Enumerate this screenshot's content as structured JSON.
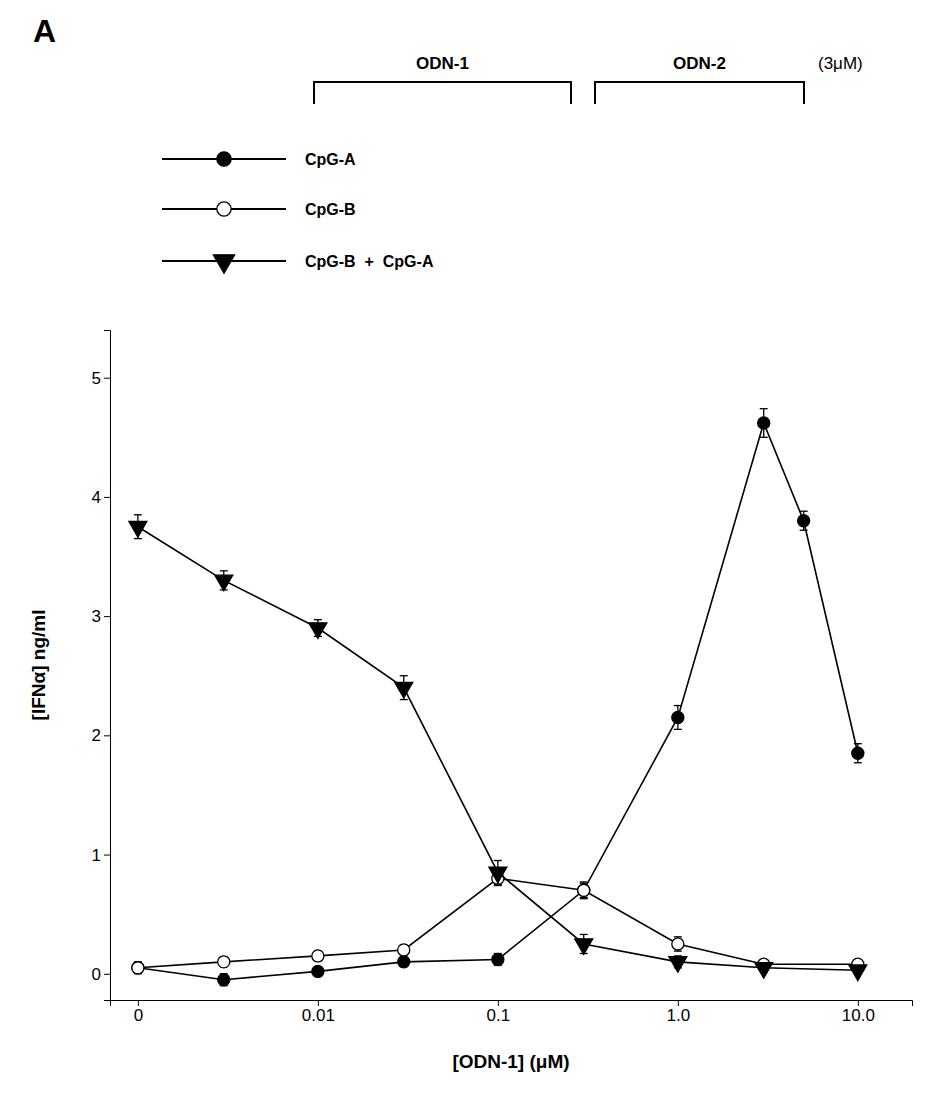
{
  "chart_data": {
    "type": "line",
    "xlabel": "[ODN-1] (μM)",
    "ylabel": "[IFNα] ng/ml",
    "panel_label": "A",
    "annotations": [
      "ODN-1",
      "ODN-2",
      "(3μM)"
    ],
    "log": "x",
    "xlim": [
      0.0007,
      20.0
    ],
    "xticks": [
      {
        "value": 0.001,
        "label": "0"
      },
      0.01,
      0.1,
      {
        "value": 1.0,
        "label": "1.0"
      },
      {
        "value": 10.0,
        "label": "10.0"
      }
    ],
    "ylim": [
      -0.22,
      5.4
    ],
    "yticks": [
      0,
      1,
      2,
      3,
      4,
      5
    ],
    "grid": false,
    "legend": "top",
    "series": [
      {
        "name": "CpG-A",
        "color": "#000000",
        "marker": "circle",
        "line_style": "solid",
        "x": [
          0.001,
          0.003,
          0.01,
          0.03,
          0.1,
          0.3,
          1.0,
          3.0,
          5.0,
          10.0
        ],
        "values": [
          0.05,
          -0.05,
          0.02,
          0.1,
          0.12,
          0.7,
          2.15,
          4.62,
          3.8,
          1.85
        ],
        "errors": [
          0.05,
          0.05,
          0.03,
          0.04,
          0.05,
          0.07,
          0.1,
          0.12,
          0.08,
          0.08
        ]
      },
      {
        "name": "CpG-B",
        "color": "#000000",
        "marker": "circle-open",
        "line_style": "solid",
        "x": [
          0.001,
          0.003,
          0.01,
          0.03,
          0.1,
          0.3,
          1.0,
          3.0,
          10.0
        ],
        "values": [
          0.05,
          0.1,
          0.15,
          0.2,
          0.8,
          0.7,
          0.25,
          0.08,
          0.08
        ],
        "errors": [
          0.04,
          0.04,
          0.04,
          0.04,
          0.06,
          0.06,
          0.06,
          0.03,
          0.03
        ]
      },
      {
        "name": "CpG-B  +  CpG-A",
        "color": "#000000",
        "marker": "triangle-down",
        "line_style": "solid",
        "x": [
          0.001,
          0.003,
          0.01,
          0.03,
          0.1,
          0.3,
          1.0,
          3.0,
          10.0
        ],
        "values": [
          3.75,
          3.3,
          2.9,
          2.4,
          0.85,
          0.25,
          0.1,
          0.05,
          0.03
        ],
        "errors": [
          0.1,
          0.08,
          0.07,
          0.1,
          0.1,
          0.08,
          0.05,
          0.03,
          0.03
        ]
      }
    ]
  }
}
